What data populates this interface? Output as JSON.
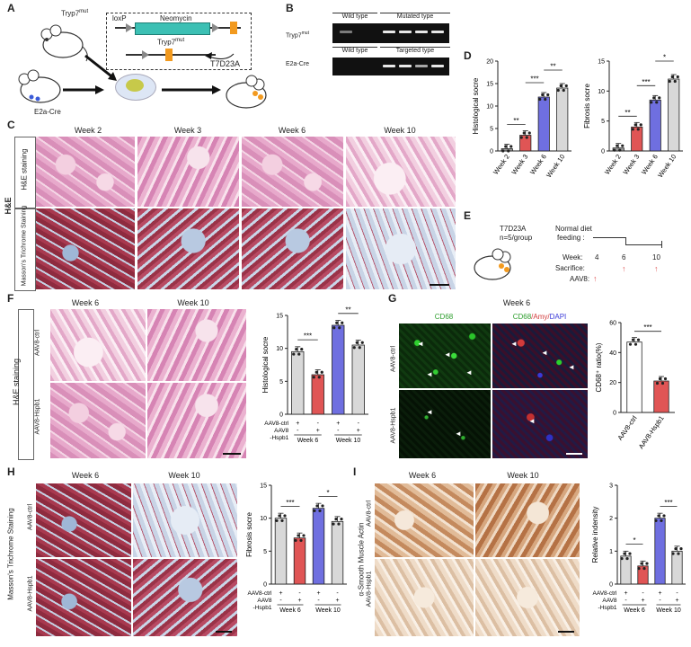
{
  "panels": {
    "A": "A",
    "B": "B",
    "C": "C",
    "D": "D",
    "E": "E",
    "F": "F",
    "G": "G",
    "H": "H",
    "I": "I"
  },
  "panelA": {
    "mouse1": "Tryp7",
    "mouse1_sup": "mut",
    "loxp": "loxP",
    "neomycin": "Neomycin",
    "tryp7": "Tryp7",
    "tryp7_sup": "mut",
    "mouse2": "E2a-Cre",
    "result": "T7D23A"
  },
  "panelB": {
    "row1_label": "Tryp7",
    "row1_sup": "mut",
    "row1_headers": [
      "Wild type",
      "Mutated type"
    ],
    "row2_label": "E2a-Cre",
    "row2_headers": [
      "Wild type",
      "Targeted type"
    ]
  },
  "panelC": {
    "weeks": [
      "Week 2",
      "Week 3",
      "Week 6",
      "Week 10"
    ],
    "row1": "H&E staining",
    "row2": "Masson's Trichrome Staining",
    "side": "H&E"
  },
  "panelD": {
    "chart_data": [
      {
        "type": "bar",
        "categories": [
          "Week 2",
          "Week 3",
          "Week 6",
          "Week 10"
        ],
        "values": [
          0.5,
          3.5,
          12,
          14
        ],
        "ylabel": "Histological socre",
        "ylim": [
          0,
          20
        ],
        "yticks": [
          "0",
          "5",
          "10",
          "15",
          "20"
        ],
        "colors": [
          "#9a9a9a",
          "#e05555",
          "#6f6fe0",
          "#d8d8d8"
        ],
        "significance": [
          "**",
          "***",
          "**"
        ]
      },
      {
        "type": "bar",
        "categories": [
          "Week 2",
          "Week 3",
          "Week 6",
          "Week 10"
        ],
        "values": [
          0.5,
          4,
          8.5,
          12
        ],
        "ylabel": "Fibrosis socre",
        "ylim": [
          0,
          15
        ],
        "yticks": [
          "0",
          "5",
          "10",
          "15"
        ],
        "colors": [
          "#9a9a9a",
          "#e05555",
          "#6f6fe0",
          "#d8d8d8"
        ],
        "significance": [
          "**",
          "***",
          "*"
        ]
      }
    ]
  },
  "panelE": {
    "mouse": "T7D23A",
    "n": "n=5/group",
    "diet": "Normal diet",
    "feeding": "feeding :",
    "week_label": "Week:",
    "weeks": [
      "4",
      "6",
      "10"
    ],
    "sacrifice": "Sacrifice:",
    "aav": "AAV8:"
  },
  "panelF": {
    "weeks": [
      "Week 6",
      "Week 10"
    ],
    "rows": [
      "AAV8-ctrl",
      "AAV8-Hspb1"
    ],
    "side": "H&E  staining",
    "chart_data": {
      "type": "bar",
      "categories": [
        "Week 6 AAV8-ctrl",
        "Week 6 AAV8-Hspb1",
        "Week 10 AAV8-ctrl",
        "Week 10 AAV8-Hspb1"
      ],
      "values": [
        9.5,
        6,
        13.5,
        10.5
      ],
      "ylabel": "Histological socre",
      "ylim": [
        0,
        15
      ],
      "yticks": [
        "0",
        "5",
        "10",
        "15"
      ],
      "colors": [
        "#d8d8d8",
        "#e05555",
        "#6f6fe0",
        "#d8d8d8"
      ],
      "significance": [
        "***",
        "**"
      ]
    },
    "legend_rows": [
      "AAV8-ctrl",
      "AAV8",
      "-Hspb1"
    ],
    "legend_signs": [
      [
        "+",
        "-",
        "+",
        "-"
      ],
      [
        "-",
        "+",
        "-",
        "+"
      ]
    ],
    "groups": [
      "Week 6",
      "Week 10"
    ]
  },
  "panelG": {
    "week": "Week 6",
    "col1": "CD68",
    "col2_a": "CD68",
    "col2_b": "/Amy/",
    "col2_c": "DAPI",
    "rows": [
      "AAV8-ctrl",
      "AAV8-Hspb1"
    ],
    "chart_data": {
      "type": "bar",
      "categories": [
        "AAV8-ctrl",
        "AAV8-Hspb1"
      ],
      "values": [
        47,
        21
      ],
      "ylabel": "CD68⁺ ratio(%)",
      "ylim": [
        0,
        60
      ],
      "yticks": [
        "0",
        "20",
        "40",
        "60"
      ],
      "colors": [
        "#ffffff",
        "#e05555"
      ],
      "significance": [
        "***"
      ]
    }
  },
  "panelH": {
    "weeks": [
      "Week 6",
      "Week 10"
    ],
    "rows": [
      "AAV8-ctrl",
      "AAV8-Hspb1"
    ],
    "side": "Masson's Trichrome Staining",
    "chart_data": {
      "type": "bar",
      "categories": [
        "Week 6 AAV8-ctrl",
        "Week 6 AAV8-Hspb1",
        "Week 10 AAV8-ctrl",
        "Week 10 AAV8-Hspb1"
      ],
      "values": [
        10,
        7,
        11.5,
        9.5
      ],
      "ylabel": "Fibrosis socre",
      "ylim": [
        0,
        15
      ],
      "yticks": [
        "0",
        "5",
        "10",
        "15"
      ],
      "colors": [
        "#d8d8d8",
        "#e05555",
        "#6f6fe0",
        "#d8d8d8"
      ],
      "significance": [
        "***",
        "*"
      ]
    },
    "legend_rows": [
      "AAV8-ctrl",
      "AAV8",
      "-Hspb1"
    ],
    "groups": [
      "Week 6",
      "Week 10"
    ]
  },
  "panelI": {
    "weeks": [
      "Week 6",
      "Week 10"
    ],
    "rows": [
      "AAV8-ctrl",
      "AAV8-Hspb1"
    ],
    "side": "α-Smooth Muscle Actin",
    "chart_data": {
      "type": "bar",
      "categories": [
        "Week 6 AAV8-ctrl",
        "Week 6 AAV8-Hspb1",
        "Week 10 AAV8-ctrl",
        "Week 10 AAV8-Hspb1"
      ],
      "values": [
        0.85,
        0.55,
        2.0,
        1.0
      ],
      "ylabel": "Relative indensity",
      "ylim": [
        0,
        3
      ],
      "yticks": [
        "0",
        "1",
        "2",
        "3"
      ],
      "colors": [
        "#d8d8d8",
        "#e05555",
        "#6f6fe0",
        "#d8d8d8"
      ],
      "significance": [
        "*",
        "***"
      ]
    },
    "legend_rows": [
      "AAV8-ctrl",
      "AAV8",
      "-Hspb1"
    ],
    "groups": [
      "Week 6",
      "Week 10"
    ]
  },
  "colors": {
    "dark": "#222222",
    "red": "#e05555",
    "blue": "#6f6fe0",
    "grey": "#d8d8d8",
    "green": "#2e9e2e",
    "orange": "#f29a1f",
    "teal": "#3cc0b4"
  }
}
